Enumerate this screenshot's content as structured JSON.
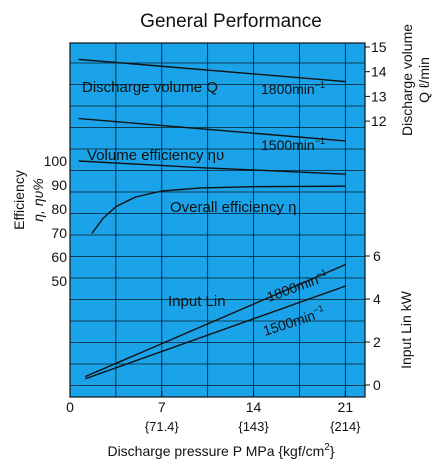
{
  "chart_data": {
    "type": "line",
    "title": "General Performance",
    "xlabel": "Discharge pressure P MPa {kgf/cm²}",
    "xlabel_parts": {
      "main": "Discharge pressure P MPa {kgf/cm",
      "sup": "2",
      "end": "}"
    },
    "x_ticks": [
      "0",
      "7",
      "14",
      "21"
    ],
    "x_ticks_sub": [
      "{71.4}",
      "{143}",
      "{214}"
    ],
    "xlim": [
      0,
      22.5
    ],
    "left_axis": {
      "label_line1": "Efficiency",
      "label_line2": "η, ηυ%",
      "ticks": [
        "100",
        "90",
        "80",
        "70",
        "60",
        "50"
      ]
    },
    "right_axis_top": {
      "label_line1": "Discharge volume",
      "label_line2": "Q ℓ/min",
      "ticks": [
        "15",
        "14",
        "13",
        "12"
      ]
    },
    "right_axis_bottom": {
      "label": "Input Lin kW",
      "ticks": [
        "6",
        "4",
        "2",
        "0"
      ]
    },
    "grid": true,
    "background": "#1aa3e8",
    "series": [
      {
        "name": "Discharge volume Q 1800min⁻¹",
        "axis": "Q",
        "x": [
          0.7,
          21
        ],
        "y": [
          14.5,
          13.6
        ]
      },
      {
        "name": "Discharge volume Q 1500min⁻¹",
        "axis": "Q",
        "x": [
          0.7,
          21
        ],
        "y": [
          12.1,
          11.2
        ]
      },
      {
        "name": "Volume efficiency ηυ",
        "axis": "eff",
        "x": [
          0.7,
          5,
          10,
          15,
          21
        ],
        "y": [
          100,
          98.7,
          97.2,
          96,
          94.5
        ]
      },
      {
        "name": "Overall efficiency η",
        "axis": "eff",
        "x": [
          1.7,
          2.5,
          3.5,
          5,
          7,
          10,
          14,
          21
        ],
        "y": [
          70,
          76,
          81,
          85,
          87.5,
          88.8,
          89.3,
          89.5
        ]
      },
      {
        "name": "Input Lin 1800min⁻¹",
        "axis": "power",
        "x": [
          1.2,
          21
        ],
        "y": [
          0.4,
          5.6
        ]
      },
      {
        "name": "Input Lin 1500min⁻¹",
        "axis": "power",
        "x": [
          1.2,
          21
        ],
        "y": [
          0.3,
          4.6
        ]
      }
    ],
    "annotations": {
      "discharge_volume": "Discharge volume Q",
      "rpm_1800_top": "1800min",
      "rpm_1500_top": "1500min",
      "volume_efficiency": "Volume efficiency ηυ",
      "overall_efficiency": "Overall efficiency η",
      "input_lin": "Input Lin",
      "rpm_1800_bottom": "1800min",
      "rpm_1500_bottom": "1500min",
      "rpm_sup": "−1"
    }
  }
}
